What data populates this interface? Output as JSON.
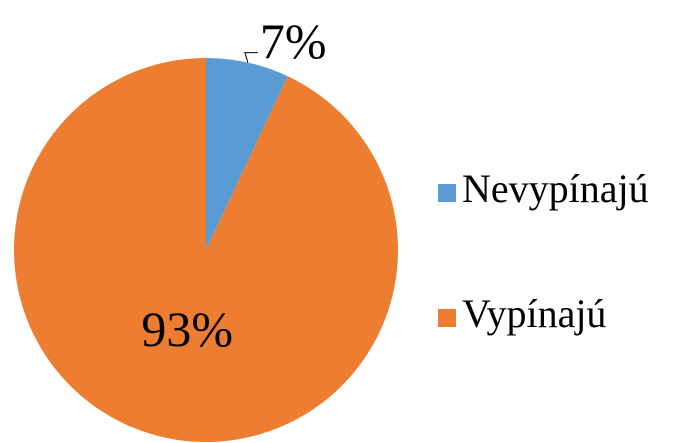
{
  "chart_data": {
    "type": "pie",
    "categories": [
      "Nevypínajú",
      "Vypínajú"
    ],
    "values": [
      7,
      93
    ],
    "value_labels": [
      "7%",
      "93%"
    ],
    "colors": [
      "#5b9bd5",
      "#ed7d31"
    ],
    "legend": "right"
  }
}
